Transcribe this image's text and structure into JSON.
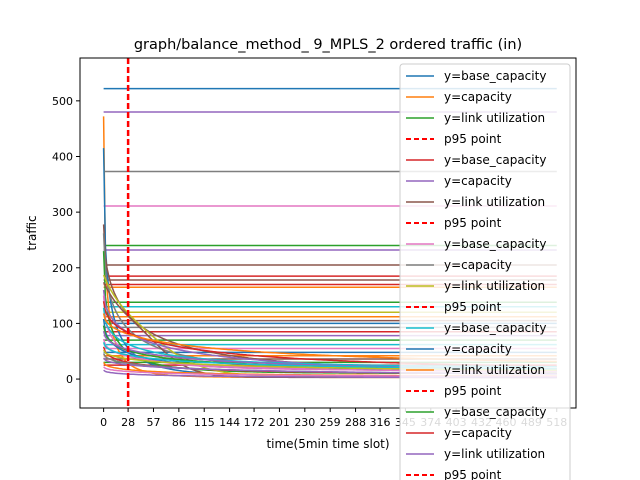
{
  "chart_data": {
    "type": "line",
    "title": "graph/balance_method_ 9_MPLS_2 ordered traffic (in)",
    "xlabel": "time(5min time slot)",
    "ylabel": "traffic",
    "xlim": [
      -27,
      540
    ],
    "ylim": [
      -52,
      577
    ],
    "yticks": [
      0,
      100,
      200,
      300,
      400,
      500
    ],
    "xticks": [
      0,
      28,
      57,
      86,
      115,
      144,
      172,
      201,
      230,
      259,
      288,
      316,
      345,
      374,
      403,
      432,
      460,
      489,
      518
    ],
    "xtick_labels": [
      "0",
      "28",
      "57",
      "86",
      "115",
      "144",
      "172",
      "201",
      "230",
      "259",
      "288",
      "316",
      "345",
      "374",
      "403",
      "432",
      "460",
      "489",
      "518"
    ],
    "p95_x": 28,
    "grid": false,
    "legend": {
      "placement": "right",
      "entries": [
        {
          "label": "y=base_capacity",
          "color": "#1f77b4",
          "dashed": false
        },
        {
          "label": "y=capacity",
          "color": "#ff7f0e",
          "dashed": false
        },
        {
          "label": "y=link utilization",
          "color": "#2ca02c",
          "dashed": false
        },
        {
          "label": "p95 point",
          "color": "#ff0000",
          "dashed": true
        },
        {
          "label": "y=base_capacity",
          "color": "#d62728",
          "dashed": false
        },
        {
          "label": "y=capacity",
          "color": "#9467bd",
          "dashed": false
        },
        {
          "label": "y=link utilization",
          "color": "#8c564b",
          "dashed": false
        },
        {
          "label": "p95 point",
          "color": "#ff0000",
          "dashed": true
        },
        {
          "label": "y=base_capacity",
          "color": "#e377c2",
          "dashed": false
        },
        {
          "label": "y=capacity",
          "color": "#7f7f7f",
          "dashed": false
        },
        {
          "label": "y=link utilization",
          "color": "#bcbd22",
          "dashed": false
        },
        {
          "label": "p95 point",
          "color": "#ff0000",
          "dashed": true
        },
        {
          "label": "y=base_capacity",
          "color": "#17becf",
          "dashed": false
        },
        {
          "label": "y=capacity",
          "color": "#1f77b4",
          "dashed": false
        },
        {
          "label": "y=link utilization",
          "color": "#ff7f0e",
          "dashed": false
        },
        {
          "label": "p95 point",
          "color": "#ff0000",
          "dashed": true
        },
        {
          "label": "y=base_capacity",
          "color": "#2ca02c",
          "dashed": false
        },
        {
          "label": "y=capacity",
          "color": "#d62728",
          "dashed": false
        },
        {
          "label": "y=link utilization",
          "color": "#9467bd",
          "dashed": false
        },
        {
          "label": "p95 point",
          "color": "#ff0000",
          "dashed": true
        }
      ]
    },
    "constant_lines": [
      {
        "y": 522,
        "color": "#1f77b4"
      },
      {
        "y": 480,
        "color": "#9467bd"
      },
      {
        "y": 373,
        "color": "#7f7f7f"
      },
      {
        "y": 311,
        "color": "#e377c2"
      },
      {
        "y": 240,
        "color": "#2ca02c"
      },
      {
        "y": 232,
        "color": "#9467bd"
      },
      {
        "y": 205,
        "color": "#8c564b"
      },
      {
        "y": 185,
        "color": "#d62728"
      },
      {
        "y": 178,
        "color": "#8c564b"
      },
      {
        "y": 170,
        "color": "#d62728"
      },
      {
        "y": 165,
        "color": "#ff7f0e"
      },
      {
        "y": 138,
        "color": "#2ca02c"
      },
      {
        "y": 130,
        "color": "#17becf"
      },
      {
        "y": 120,
        "color": "#bcbd22"
      },
      {
        "y": 112,
        "color": "#ff7f0e"
      },
      {
        "y": 105,
        "color": "#8c564b"
      },
      {
        "y": 100,
        "color": "#1f77b4"
      },
      {
        "y": 93,
        "color": "#7f7f7f"
      },
      {
        "y": 85,
        "color": "#d62728"
      },
      {
        "y": 78,
        "color": "#9467bd"
      },
      {
        "y": 70,
        "color": "#2ca02c"
      },
      {
        "y": 62,
        "color": "#17becf"
      },
      {
        "y": 55,
        "color": "#e377c2"
      },
      {
        "y": 48,
        "color": "#1f77b4"
      },
      {
        "y": 42,
        "color": "#ff7f0e"
      },
      {
        "y": 36,
        "color": "#8c564b"
      },
      {
        "y": 30,
        "color": "#2ca02c"
      },
      {
        "y": 25,
        "color": "#d62728"
      }
    ],
    "decay_series": [
      {
        "color": "#ff7f0e",
        "start": 472,
        "end": 3,
        "rate": 0.25,
        "shape": "exp"
      },
      {
        "color": "#1f77b4",
        "start": 415,
        "end": 5,
        "rate": 0.18,
        "shape": "exp"
      },
      {
        "color": "#8c564b",
        "start": 278,
        "end": 10,
        "rate": 0.08,
        "shape": "exp"
      },
      {
        "color": "#7f7f7f",
        "start": 262,
        "end": 12,
        "rate": 0.1,
        "shape": "exp"
      },
      {
        "color": "#2ca02c",
        "start": 230,
        "end": 10,
        "rate": 0.15,
        "shape": "exp"
      },
      {
        "color": "#bcbd22",
        "start": 200,
        "end": 5,
        "rate": 0.45,
        "shape": "sigmoid"
      },
      {
        "color": "#8c564b",
        "start": 180,
        "end": 3,
        "rate": 0.6,
        "shape": "sigmoid"
      },
      {
        "color": "#9467bd",
        "start": 160,
        "end": 8,
        "rate": 0.06,
        "shape": "exp"
      },
      {
        "color": "#e377c2",
        "start": 150,
        "end": 15,
        "rate": 0.12,
        "shape": "exp"
      },
      {
        "color": "#d62728",
        "start": 140,
        "end": 12,
        "rate": 0.05,
        "shape": "exp"
      },
      {
        "color": "#17becf",
        "start": 128,
        "end": 20,
        "rate": 0.08,
        "shape": "exp"
      },
      {
        "color": "#ff7f0e",
        "start": 118,
        "end": 18,
        "rate": 0.04,
        "shape": "exp"
      },
      {
        "color": "#1f77b4",
        "start": 108,
        "end": 14,
        "rate": 0.09,
        "shape": "exp"
      },
      {
        "color": "#2ca02c",
        "start": 96,
        "end": 16,
        "rate": 0.07,
        "shape": "exp"
      },
      {
        "color": "#9467bd",
        "start": 86,
        "end": 12,
        "rate": 0.05,
        "shape": "exp"
      },
      {
        "color": "#e377c2",
        "start": 72,
        "end": 10,
        "rate": 0.06,
        "shape": "exp"
      },
      {
        "color": "#17becf",
        "start": 66,
        "end": 14,
        "rate": 0.05,
        "shape": "exp"
      },
      {
        "color": "#d62728",
        "start": 58,
        "end": 8,
        "rate": 0.07,
        "shape": "exp"
      },
      {
        "color": "#bcbd22",
        "start": 52,
        "end": 10,
        "rate": 0.04,
        "shape": "exp"
      },
      {
        "color": "#7f7f7f",
        "start": 46,
        "end": 6,
        "rate": 0.05,
        "shape": "exp"
      },
      {
        "color": "#9467bd",
        "start": 38,
        "end": 5,
        "rate": 0.04,
        "shape": "exp"
      },
      {
        "color": "#ff7f0e",
        "start": 30,
        "end": 4,
        "rate": 0.06,
        "shape": "exp"
      },
      {
        "color": "#e377c2",
        "start": 22,
        "end": 3,
        "rate": 0.05,
        "shape": "exp"
      },
      {
        "color": "#9467bd",
        "start": 16,
        "end": 2,
        "rate": 0.06,
        "shape": "exp"
      }
    ]
  }
}
